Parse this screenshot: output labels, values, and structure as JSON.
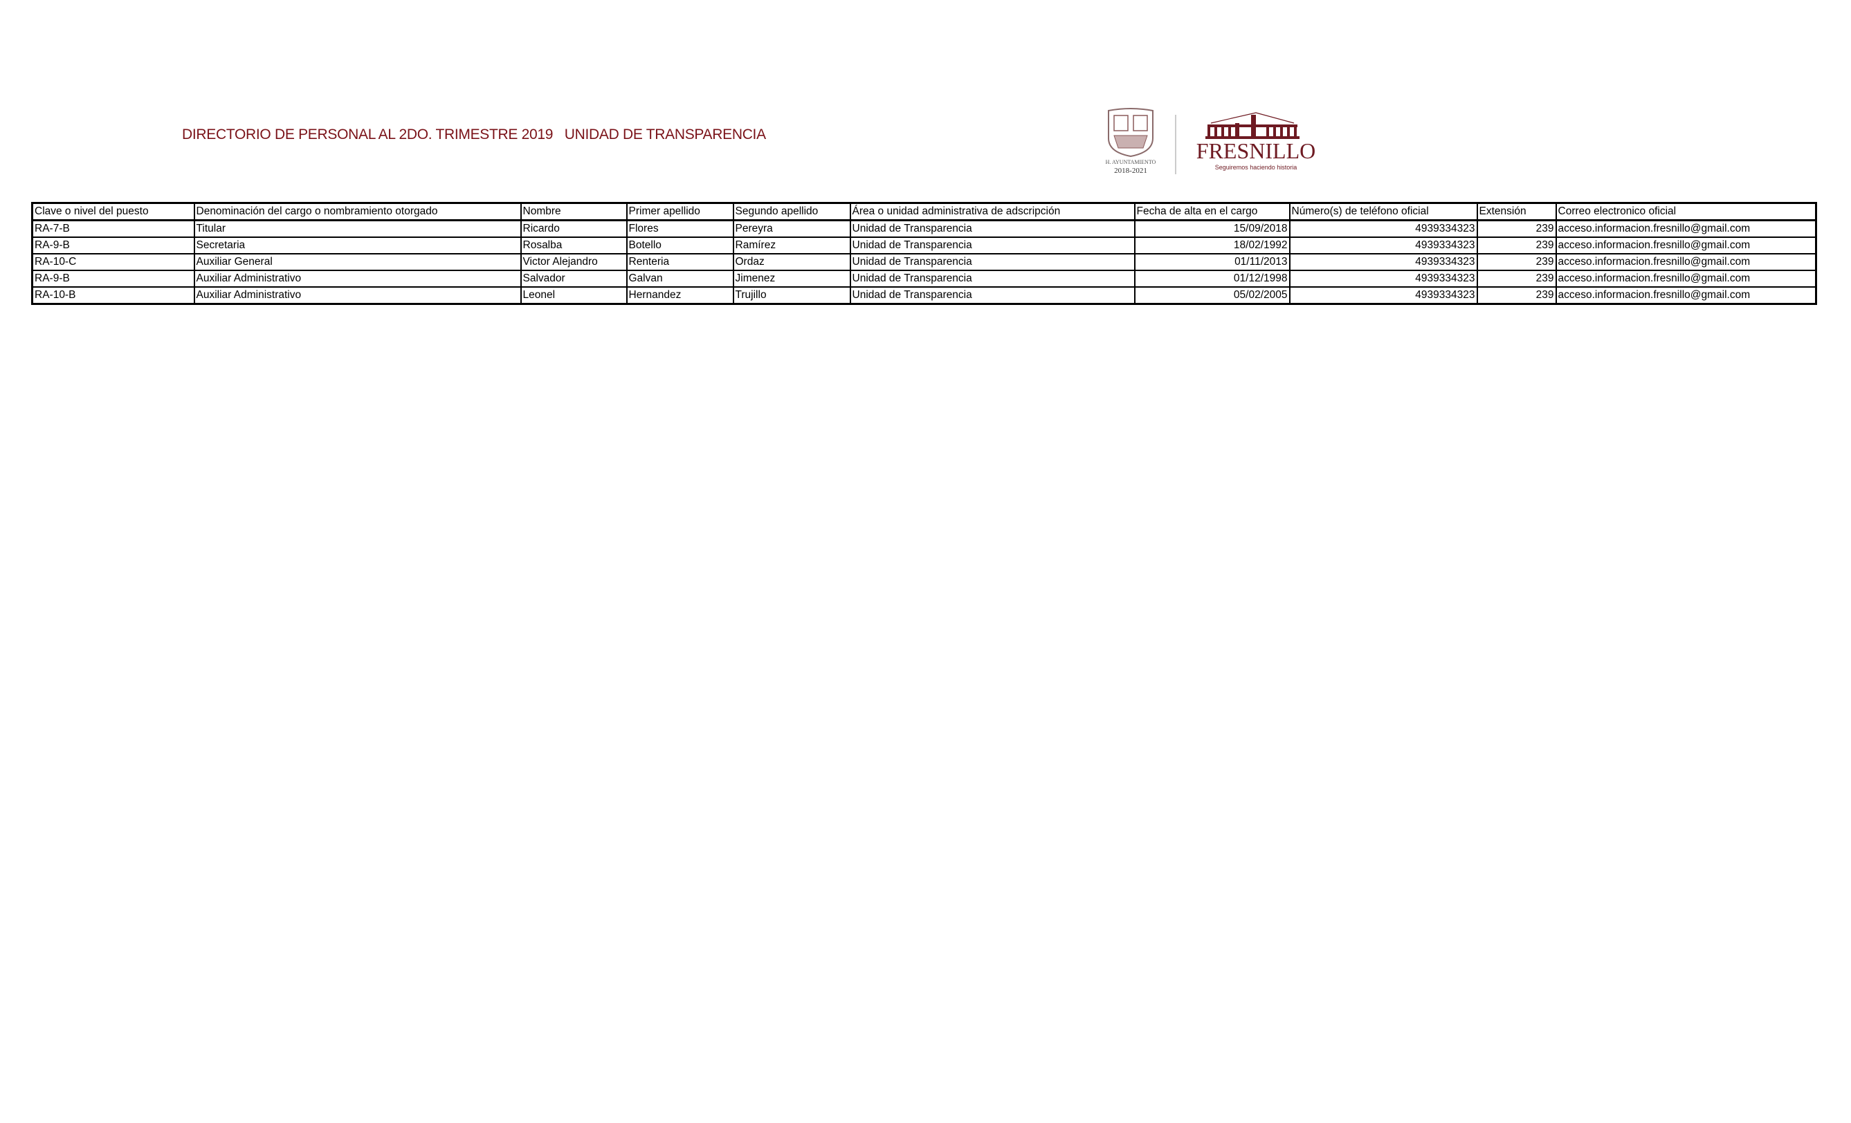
{
  "header": {
    "title": "DIRECTORIO DE PERSONAL AL 2DO. TRIMESTRE 2019   UNIDAD DE TRANSPARENCIA",
    "title_color": "#7a1218",
    "logo_shield_text": [
      "H. AYUNTAMIENTO",
      "2018-2021"
    ],
    "logo_brand": "FRESNILLO",
    "logo_tagline": "Seguiremos haciendo historia",
    "brand_color": "#6e1a22"
  },
  "table": {
    "columns": [
      "Clave o nivel del puesto",
      "Denominación del cargo o nombramiento otorgado",
      "Nombre",
      "Primer apellido",
      "Segundo apellido",
      "Área o unidad administrativa de adscripción",
      "Fecha de alta en el cargo",
      "Número(s) de teléfono oficial",
      "Extensión",
      "Correo electronico oficial"
    ],
    "rows": [
      [
        "RA-7-B",
        "Titular",
        "Ricardo",
        "Flores",
        "Pereyra",
        "Unidad de Transparencia",
        "15/09/2018",
        "4939334323",
        "239",
        "acceso.informacion.fresnillo@gmail.com"
      ],
      [
        "RA-9-B",
        "Secretaria",
        "Rosalba",
        "Botello",
        "Ramírez",
        "Unidad de Transparencia",
        "18/02/1992",
        "4939334323",
        "239",
        "acceso.informacion.fresnillo@gmail.com"
      ],
      [
        "RA-10-C",
        "Auxiliar General",
        "Victor Alejandro",
        "Renteria",
        "Ordaz",
        "Unidad de Transparencia",
        "01/11/2013",
        "4939334323",
        "239",
        "acceso.informacion.fresnillo@gmail.com"
      ],
      [
        "RA-9-B",
        "Auxiliar Administrativo",
        "Salvador",
        "Galvan",
        "Jimenez",
        "Unidad de Transparencia",
        "01/12/1998",
        "4939334323",
        "239",
        "acceso.informacion.fresnillo@gmail.com"
      ],
      [
        "RA-10-B",
        "Auxiliar Administrativo",
        "Leonel",
        "Hernandez",
        "Trujillo",
        "Unidad de Transparencia",
        "05/02/2005",
        "4939334323",
        "239",
        "acceso.informacion.fresnillo@gmail.com"
      ]
    ]
  }
}
